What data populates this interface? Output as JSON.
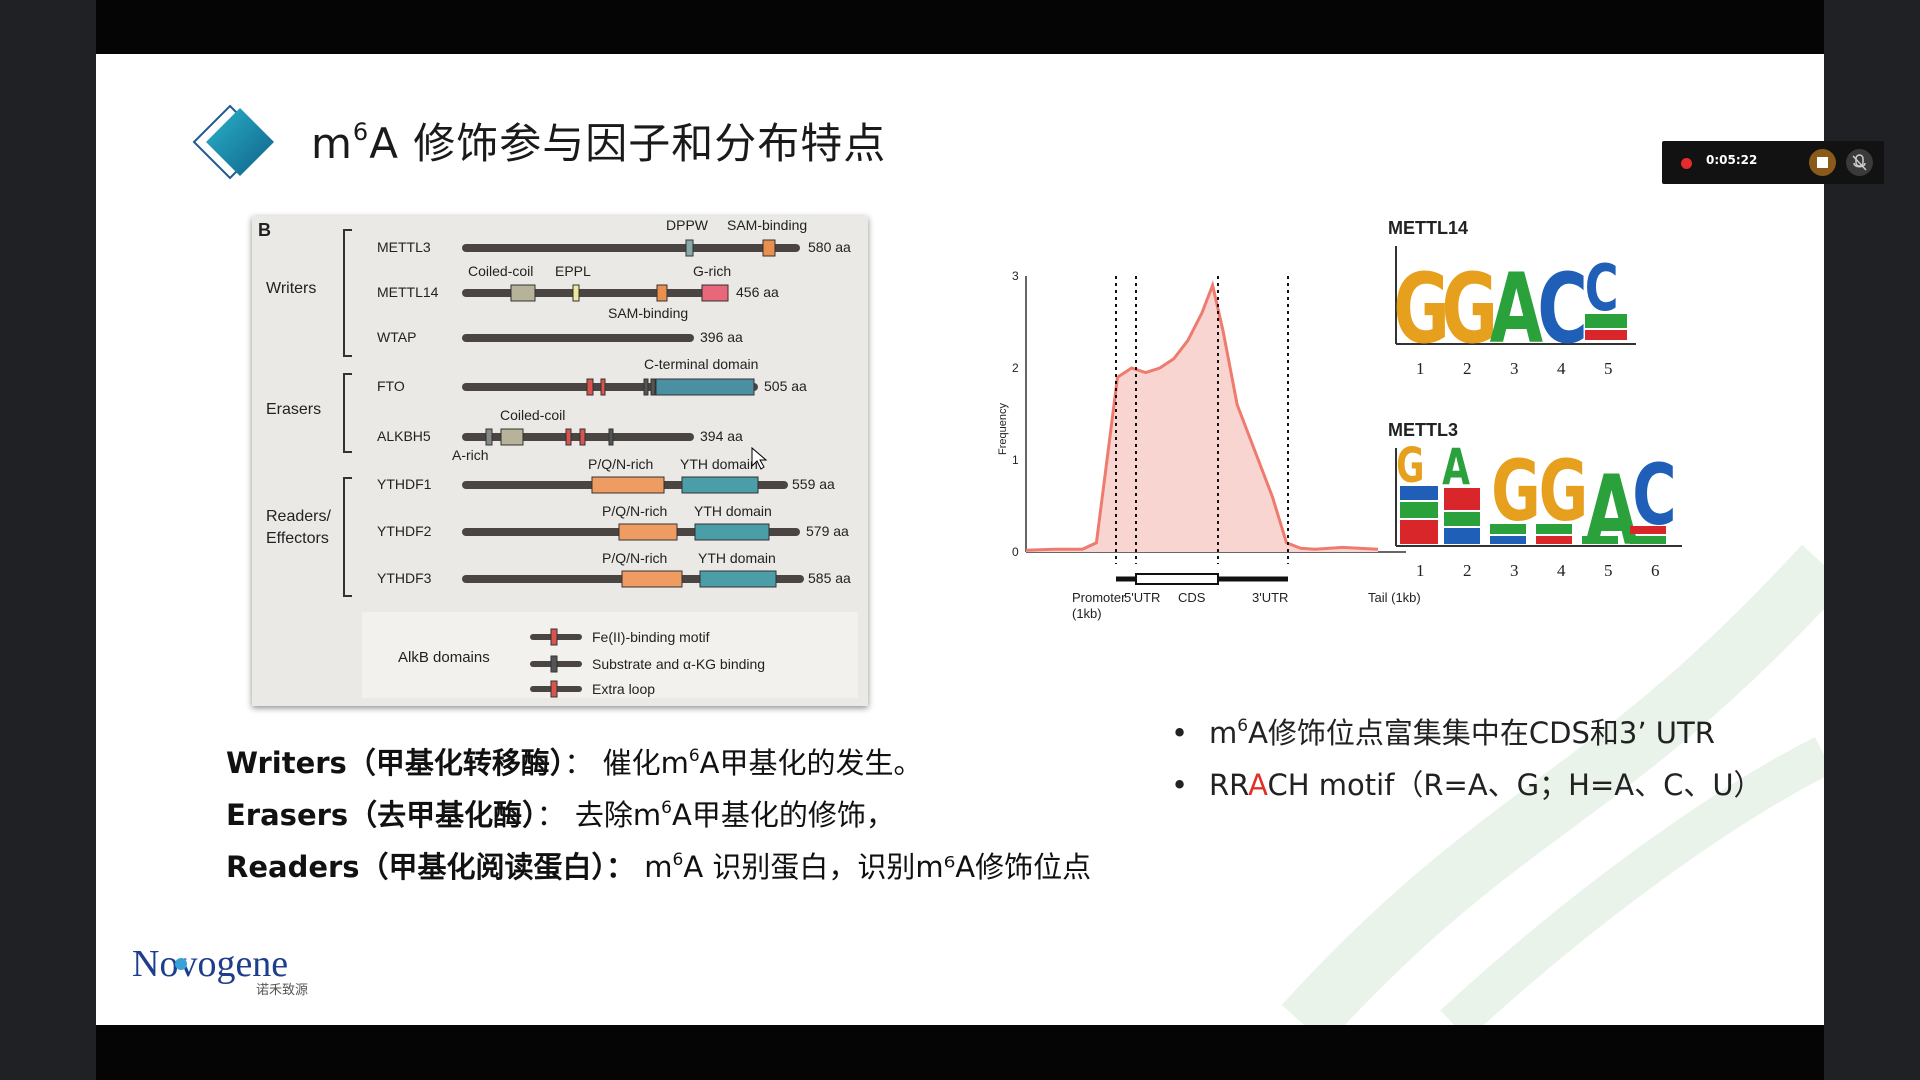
{
  "title": {
    "prefix": "m",
    "sup": "6",
    "rest": "A 修饰参与因子和分布特点"
  },
  "recorder": {
    "time": "0:05:22"
  },
  "panel_b": {
    "label": "B",
    "groups": [
      "Writers",
      "Erasers",
      "Readers/",
      "Effectors"
    ],
    "proteins": [
      {
        "name": "METTL3",
        "length": "580 aa"
      },
      {
        "name": "METTL14",
        "length": "456 aa"
      },
      {
        "name": "WTAP",
        "length": "396 aa"
      },
      {
        "name": "FTO",
        "length": "505 aa"
      },
      {
        "name": "ALKBH5",
        "length": "394 aa"
      },
      {
        "name": "YTHDF1",
        "length": "559 aa"
      },
      {
        "name": "YTHDF2",
        "length": "579 aa"
      },
      {
        "name": "YTHDF3",
        "length": "585 aa"
      }
    ],
    "domain_labels": {
      "dppw": "DPPW",
      "sam_binding": "SAM-binding",
      "coiled_coil": "Coiled-coil",
      "eppl": "EPPL",
      "g_rich": "G-rich",
      "sam_binding_2": "SAM-binding",
      "c_terminal": "C-terminal domain",
      "coiled_coil_2": "Coiled-coil",
      "a_rich": "A-rich",
      "pqn_rich": "P/Q/N-rich",
      "yth_domain": "YTH domain"
    },
    "legend": {
      "title": "AlkB domains",
      "items": [
        "Fe(II)-binding motif",
        "Substrate and α-KG binding",
        "Extra loop"
      ]
    }
  },
  "chart_data": {
    "type": "area",
    "xlabel": "",
    "ylabel": "Frequency",
    "ylim": [
      0,
      3
    ],
    "yticks": [
      "0",
      "1",
      "2",
      "3"
    ],
    "regions": [
      "Promoter",
      "(1kb)",
      "5'UTR",
      "CDS",
      "3'UTR",
      "Tail (1kb)"
    ],
    "x": [
      0,
      0.08,
      0.16,
      0.2,
      0.23,
      0.26,
      0.3,
      0.34,
      0.38,
      0.42,
      0.46,
      0.5,
      0.53,
      0.56,
      0.6,
      0.64,
      0.7,
      0.74,
      0.78,
      0.82,
      0.9,
      1.0
    ],
    "y": [
      0.02,
      0.03,
      0.03,
      0.1,
      1.0,
      1.9,
      2.0,
      1.95,
      2.0,
      2.1,
      2.3,
      2.6,
      2.9,
      2.4,
      1.6,
      1.2,
      0.6,
      0.1,
      0.04,
      0.03,
      0.05,
      0.03
    ],
    "grid": false
  },
  "motif_14": {
    "name": "METTL14",
    "letters": [
      "G",
      "G",
      "A",
      "C",
      "C"
    ],
    "positions": [
      "1",
      "2",
      "3",
      "4",
      "5"
    ]
  },
  "motif_3": {
    "name": "METTL3",
    "letters": [
      "G",
      "A",
      "G",
      "G",
      "A",
      "C"
    ],
    "positions": [
      "1",
      "2",
      "3",
      "4",
      "5",
      "6"
    ]
  },
  "definitions": [
    {
      "term": "Writers（甲基化转移酶）",
      "sep": "：",
      "desc_pre": "催化m",
      "desc_sup": "6",
      "desc_post": "A甲基化的发生。"
    },
    {
      "term": "Erasers（去甲基化酶）",
      "sep": "：",
      "desc_pre": "去除m",
      "desc_sup": "6",
      "desc_post": "A甲基化的修饰，"
    },
    {
      "term": "Readers（甲基化阅读蛋白）：",
      "sep": "",
      "desc_pre": "m",
      "desc_sup": "6",
      "desc_post": "A 识别蛋白，识别m⁶A修饰位点"
    }
  ],
  "bullets": [
    {
      "pre": "m",
      "sup": "6",
      "post": "A修饰位点富集集中在CDS和3’ UTR"
    },
    {
      "pre": "RR",
      "red": "A",
      "post": "CH motif（R=A、G；H=A、C、U）"
    }
  ],
  "logo": {
    "brand": "Novogene",
    "sub": "诺禾致源"
  },
  "colors": {
    "accent_teal": "#1e8fa6",
    "curve": "#ef7b6f",
    "fill": "#f9d5d1",
    "bar": "#4a4543"
  }
}
